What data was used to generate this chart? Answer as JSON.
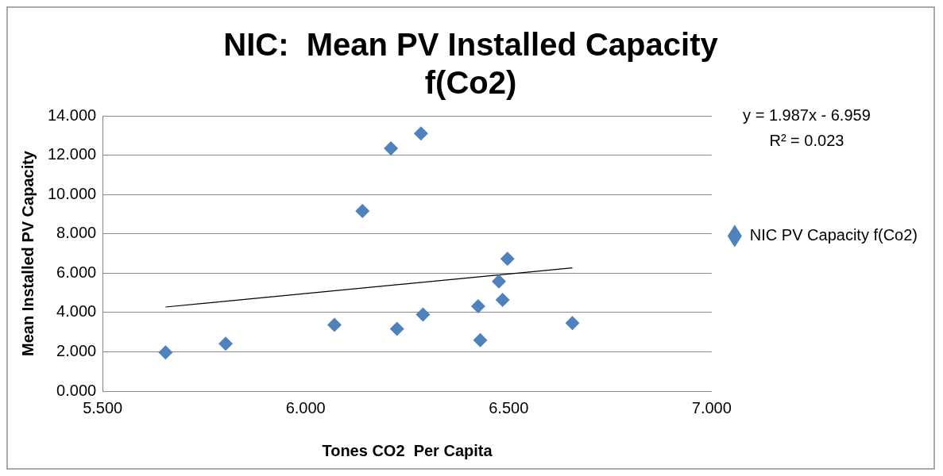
{
  "chart_data": {
    "type": "scatter",
    "title": [
      "NIC:  Mean PV Installed Capacity",
      "f(Co2)"
    ],
    "xlabel": "Tones CO2  Per Capita",
    "ylabel": "Mean Installed PV Capacity",
    "series": [
      {
        "name": "NIC PV Capacity f(Co2)",
        "color": "#4f81bd",
        "x": [
          5.655,
          5.803,
          6.071,
          6.14,
          6.21,
          6.225,
          6.284,
          6.289,
          6.425,
          6.43,
          6.476,
          6.485,
          6.497,
          6.657
        ],
        "values": [
          1.97,
          2.41,
          3.37,
          9.16,
          12.35,
          3.17,
          13.1,
          3.89,
          4.32,
          2.59,
          5.58,
          4.64,
          6.73,
          3.46
        ]
      },
      {
        "type": "line",
        "color": "#000000",
        "x": [
          5.655,
          6.657
        ],
        "values": [
          4.277,
          6.268
        ],
        "marker": "none"
      }
    ],
    "xlim": [
      5.5,
      7.0
    ],
    "xticks": [
      {
        "value": 5.5,
        "label": "5.500"
      },
      {
        "value": 6,
        "label": "6.000"
      },
      {
        "value": 6.5,
        "label": "6.500"
      },
      {
        "value": 7,
        "label": "7.000"
      }
    ],
    "ylim": [
      0,
      14
    ],
    "yticks": [
      {
        "value": 0,
        "label": "0.000"
      },
      {
        "value": 2,
        "label": "2.000"
      },
      {
        "value": 4,
        "label": "4.000"
      },
      {
        "value": 6,
        "label": "6.000"
      },
      {
        "value": 8,
        "label": "8.000"
      },
      {
        "value": 10,
        "label": "10.000"
      },
      {
        "value": 12,
        "label": "12.000"
      },
      {
        "value": 14,
        "label": "14.000"
      }
    ],
    "annotations": [
      "y = 1.987x - 6.959",
      "R² = 0.023"
    ],
    "grid": "y",
    "legend": "right",
    "marker": "diamond"
  }
}
